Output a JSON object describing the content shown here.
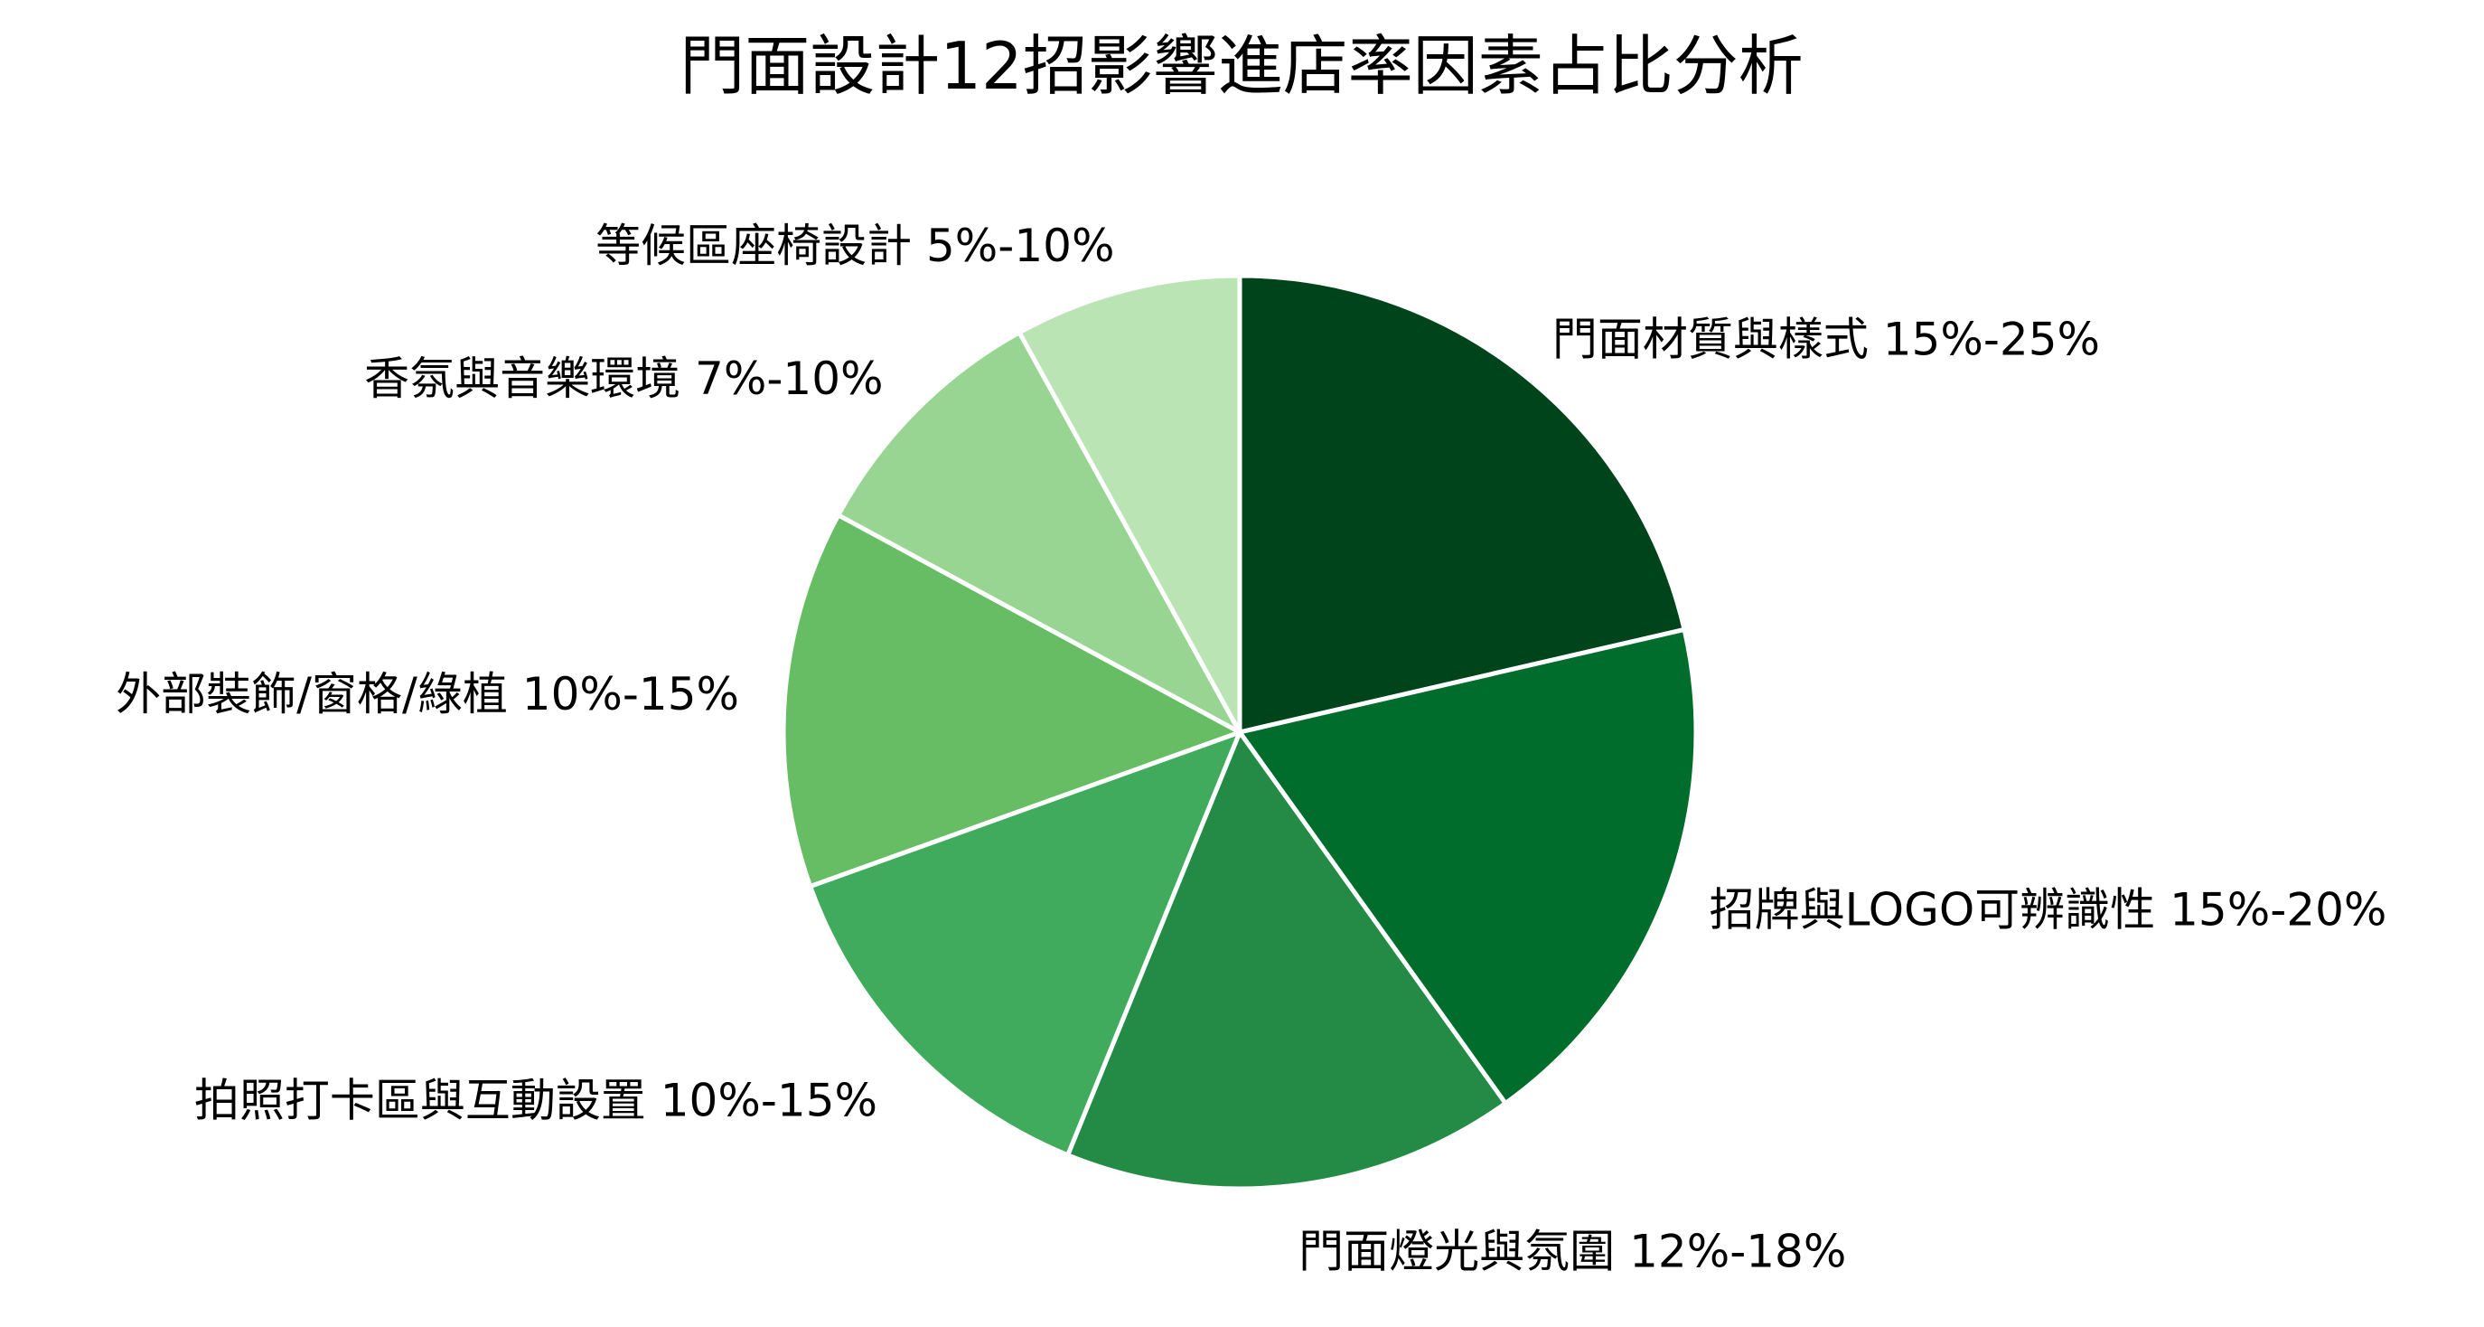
{
  "chart_data": {
    "type": "pie",
    "title": "門面設計12招影響進店率因素占比分析",
    "start_angle_deg": 90,
    "direction": "clockwise",
    "legend": "none",
    "slices": [
      {
        "label": "門面材質與樣式 15%-25%",
        "value": 20.0,
        "color": "#00441b"
      },
      {
        "label": "招牌與LOGO可辨識性 15%-20%",
        "value": 17.5,
        "color": "#006d2c"
      },
      {
        "label": "門面燈光與氛圍 12%-18%",
        "value": 15.0,
        "color": "#238b45"
      },
      {
        "label": "拍照打卡區與互動設置 10%-15%",
        "value": 12.5,
        "color": "#41ab5d"
      },
      {
        "label": "外部裝飾/窗格/綠植 10%-15%",
        "value": 12.5,
        "color": "#66bd63"
      },
      {
        "label": "香氛與音樂環境 7%-10%",
        "value": 8.5,
        "color": "#98d593"
      },
      {
        "label": "等候區座椅設計 5%-10%",
        "value": 7.5,
        "color": "#bae4b3"
      }
    ]
  }
}
